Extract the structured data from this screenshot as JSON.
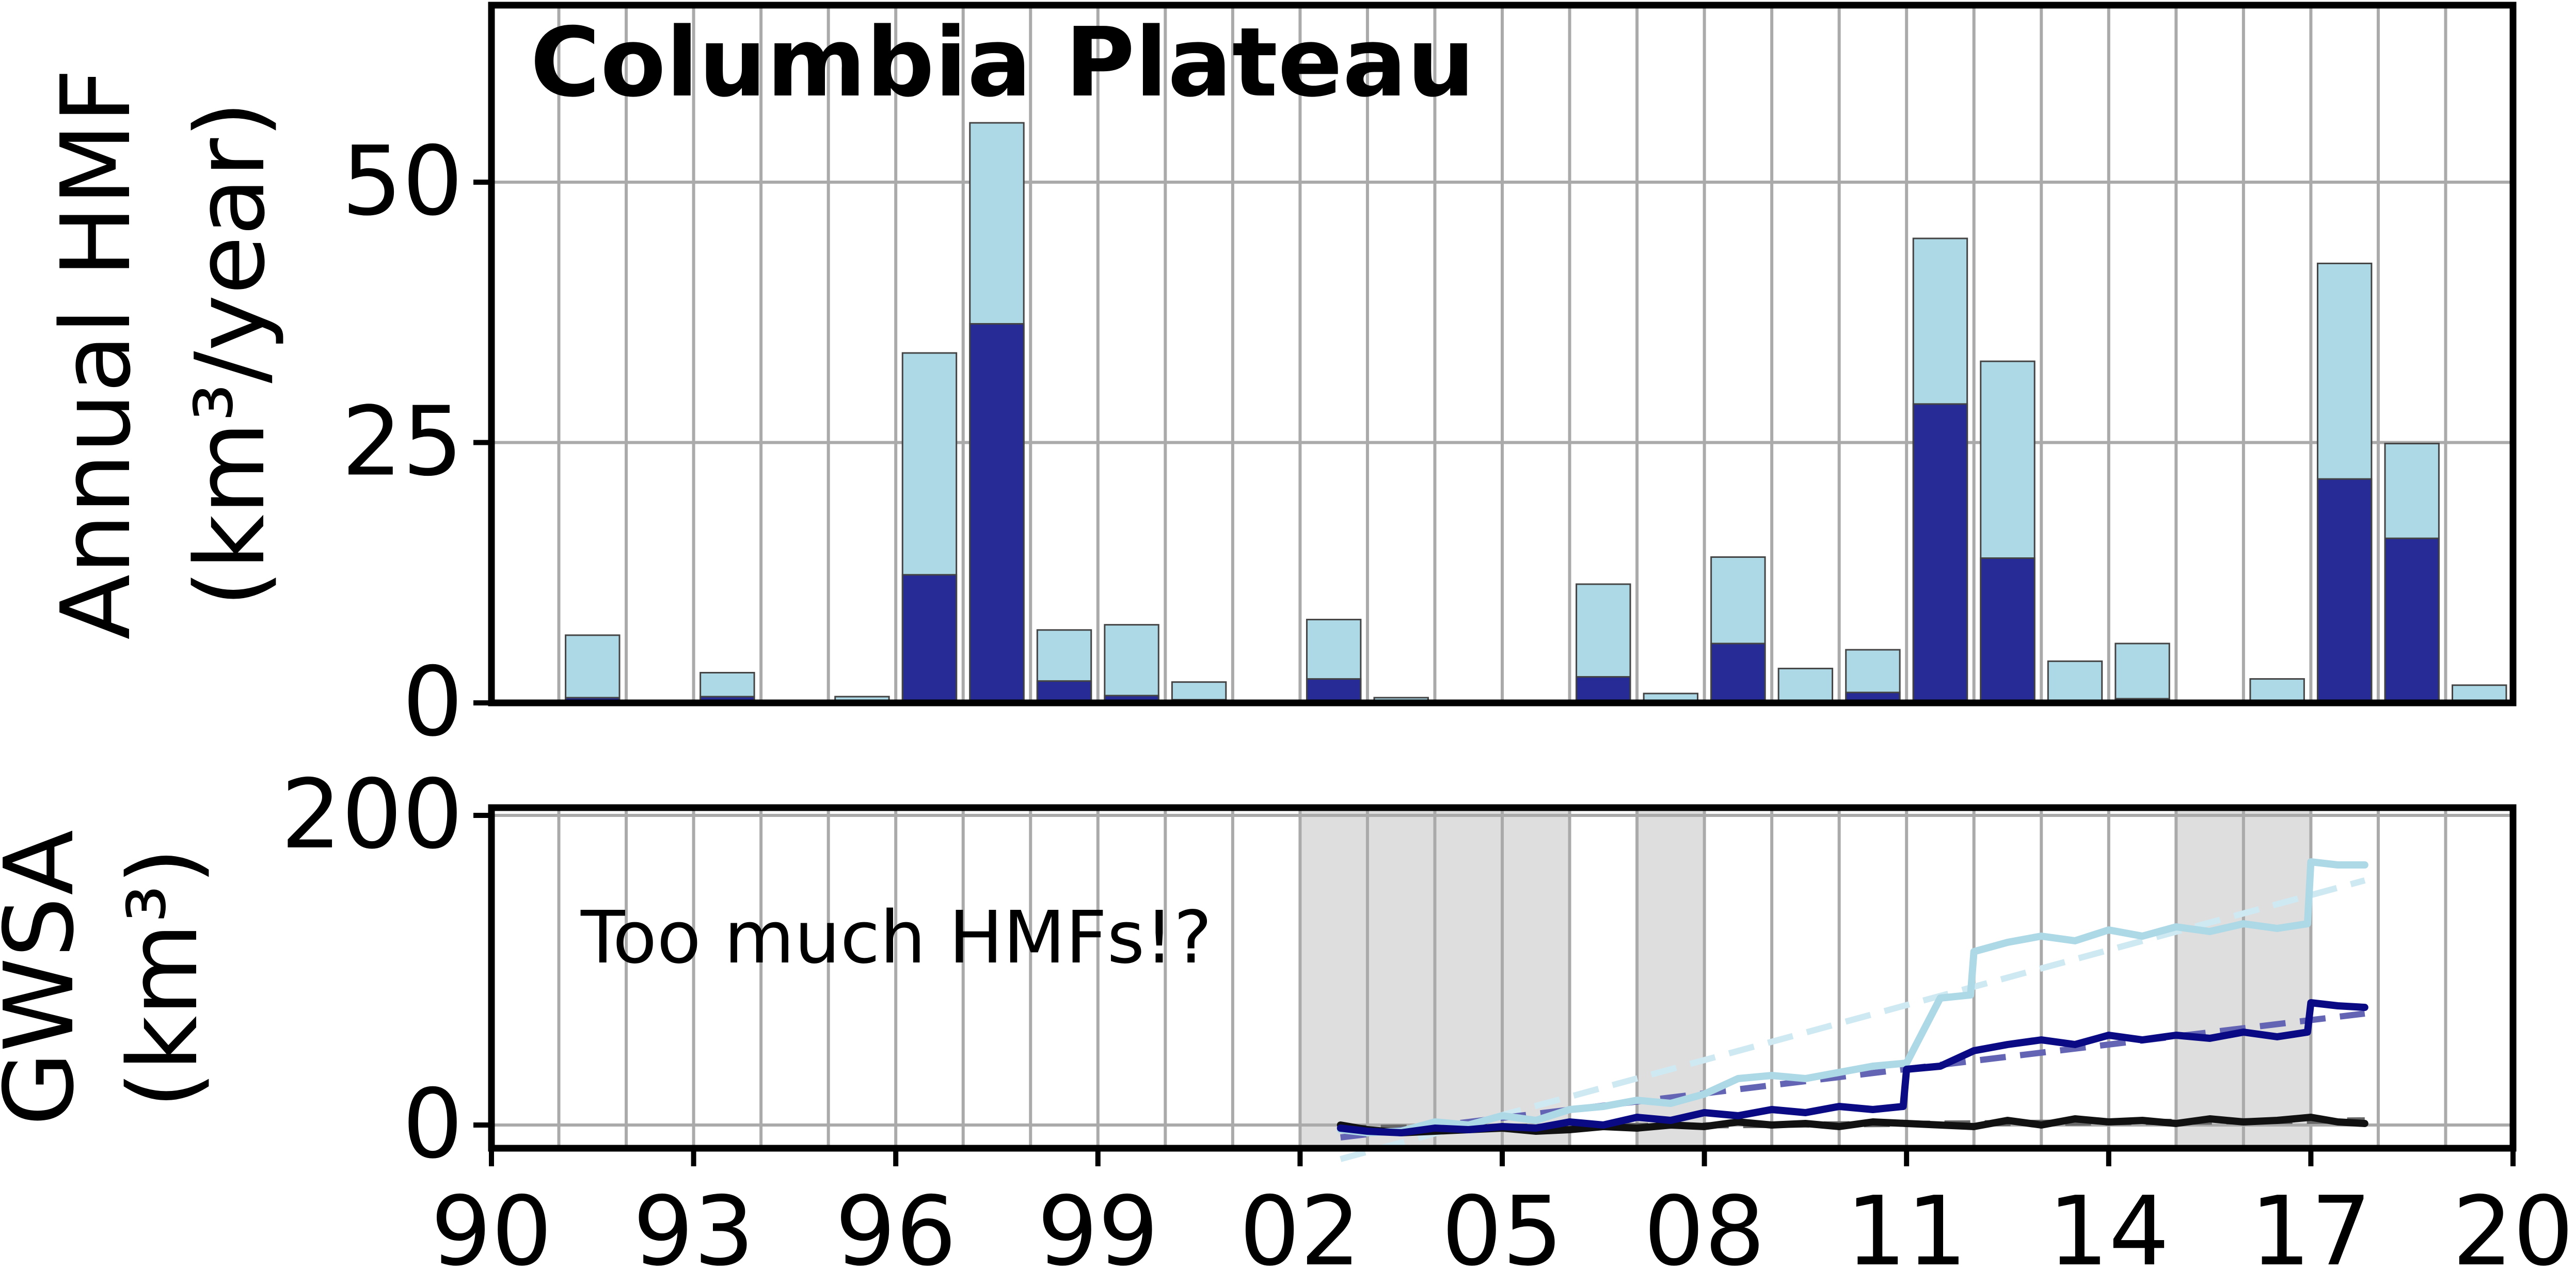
{
  "colors": {
    "light": "#add8e6",
    "dark": "#262b96",
    "line_dark": "#0a0a85",
    "line_black": "#111111",
    "trend_light": "#cfe9f2",
    "trend_dark": "#6464b4",
    "trend_black": "#666666",
    "shade": "#dedede",
    "grid": "#aaaaaa",
    "bar_edge": "#444444"
  },
  "chart_data": [
    {
      "type": "bar",
      "title": "Columbia Plateau",
      "ylabel": "Annual HMF (km³/year)",
      "ylabel_line1": "Annual HMF",
      "ylabel_line2": "(km³/year)",
      "ylim": [
        0,
        67
      ],
      "yticks": [
        0,
        25,
        50
      ],
      "ytick_labels": [
        "0",
        "25",
        "50"
      ],
      "grid": true,
      "series": [
        {
          "role": "total",
          "x": [
            1991.5,
            1993.5,
            1995.5,
            1996.5,
            1997.5,
            1998.5,
            1999.5,
            2000.5,
            2002.5,
            2003.5,
            2006.5,
            2007.5,
            2008.5,
            2009.5,
            2010.5,
            2011.5,
            2012.5,
            2013.5,
            2014.5,
            2016.5,
            2017.5,
            2018.5,
            2019.5
          ],
          "values": [
            6.5,
            2.9,
            0.6,
            33.6,
            55.7,
            7.0,
            7.5,
            2.0,
            8.0,
            0.5,
            11.4,
            0.9,
            14.0,
            3.3,
            5.1,
            44.6,
            32.8,
            4.0,
            5.7,
            2.3,
            42.2,
            24.9,
            1.7
          ]
        },
        {
          "role": "base",
          "x": [
            1991.5,
            1993.5,
            1996.5,
            1997.5,
            1998.5,
            1999.5,
            2000.5,
            2002.5,
            2006.5,
            2008.5,
            2010.5,
            2011.5,
            2012.5,
            2014.5,
            2017.5,
            2018.5
          ],
          "values": [
            0.5,
            0.6,
            12.3,
            36.4,
            2.1,
            0.7,
            0.3,
            2.3,
            2.5,
            5.7,
            1.0,
            28.7,
            13.9,
            0.4,
            21.5,
            15.8
          ]
        }
      ]
    },
    {
      "type": "line",
      "ylabel": "GWSA (km³)",
      "ylabel_line1": "GWSA",
      "ylabel_line2": "(km³)",
      "ylim": [
        -15,
        205
      ],
      "yticks": [
        0,
        200
      ],
      "ytick_labels": [
        "0",
        "200"
      ],
      "xlim": [
        1990,
        2020
      ],
      "xticks": [
        1990,
        1993,
        1996,
        1999,
        2002,
        2005,
        2008,
        2011,
        2014,
        2017,
        2020
      ],
      "xtick_labels": [
        "90",
        "93",
        "96",
        "99",
        "02",
        "05",
        "08",
        "11",
        "14",
        "17",
        "20"
      ],
      "annotation": "Too much HMFs!?",
      "grid": true,
      "shaded_spans": [
        [
          2002,
          2006
        ],
        [
          2007,
          2008
        ],
        [
          2015,
          2017
        ]
      ],
      "series": [
        {
          "role": "light",
          "x": [
            2002.6,
            2003.0,
            2003.5,
            2004.0,
            2004.5,
            2005.0,
            2005.5,
            2006.0,
            2006.5,
            2007.0,
            2007.5,
            2008.0,
            2008.5,
            2009.0,
            2009.5,
            2010.0,
            2010.5,
            2011.0,
            2011.5,
            2011.95,
            2012.0,
            2012.5,
            2013.0,
            2013.5,
            2014.0,
            2014.5,
            2015.0,
            2015.5,
            2016.0,
            2016.5,
            2016.95,
            2017.0,
            2017.4,
            2017.8
          ],
          "values": [
            -3,
            -5,
            -4,
            2,
            0,
            6,
            3,
            10,
            12,
            16,
            14,
            20,
            30,
            32,
            30,
            34,
            38,
            40,
            82,
            84,
            112,
            118,
            122,
            119,
            126,
            122,
            128,
            125,
            130,
            127,
            130,
            170,
            168,
            168
          ]
        },
        {
          "role": "dark",
          "x": [
            2002.6,
            2003.0,
            2003.5,
            2004.0,
            2004.5,
            2005.0,
            2005.5,
            2006.0,
            2006.5,
            2007.0,
            2007.5,
            2008.0,
            2008.5,
            2009.0,
            2009.5,
            2010.0,
            2010.5,
            2010.95,
            2011.0,
            2011.5,
            2012.0,
            2012.5,
            2013.0,
            2013.5,
            2014.0,
            2014.5,
            2015.0,
            2015.5,
            2016.0,
            2016.5,
            2016.95,
            2017.0,
            2017.4,
            2017.8
          ],
          "values": [
            -2,
            -4,
            -5,
            -2,
            -3,
            -1,
            -2,
            2,
            0,
            5,
            3,
            8,
            6,
            10,
            8,
            12,
            10,
            12,
            36,
            38,
            48,
            52,
            55,
            52,
            58,
            55,
            58,
            56,
            60,
            57,
            60,
            79,
            77,
            76
          ]
        },
        {
          "role": "black",
          "x": [
            2002.6,
            2003.0,
            2003.5,
            2004.0,
            2004.5,
            2005.0,
            2005.5,
            2006.0,
            2006.5,
            2007.0,
            2007.5,
            2008.0,
            2008.5,
            2009.0,
            2009.5,
            2010.0,
            2010.5,
            2011.0,
            2011.5,
            2012.0,
            2012.5,
            2013.0,
            2013.5,
            2014.0,
            2014.5,
            2015.0,
            2015.5,
            2016.0,
            2016.5,
            2017.0,
            2017.4,
            2017.8
          ],
          "values": [
            0,
            -3,
            -5,
            -4,
            -3,
            -2,
            -4,
            -3,
            -1,
            -2,
            0,
            -1,
            2,
            0,
            1,
            -1,
            2,
            1,
            0,
            -1,
            3,
            0,
            4,
            2,
            3,
            1,
            4,
            2,
            3,
            5,
            2,
            1
          ]
        },
        {
          "role": "trend_light",
          "dashed": true,
          "x": [
            2002.6,
            2017.8
          ],
          "values": [
            -22,
            158
          ]
        },
        {
          "role": "trend_dark",
          "dashed": true,
          "x": [
            2002.6,
            2017.8
          ],
          "values": [
            -8,
            72
          ]
        },
        {
          "role": "trend_black",
          "dashed": true,
          "x": [
            2002.6,
            2017.8
          ],
          "values": [
            -2,
            3
          ]
        }
      ]
    }
  ]
}
